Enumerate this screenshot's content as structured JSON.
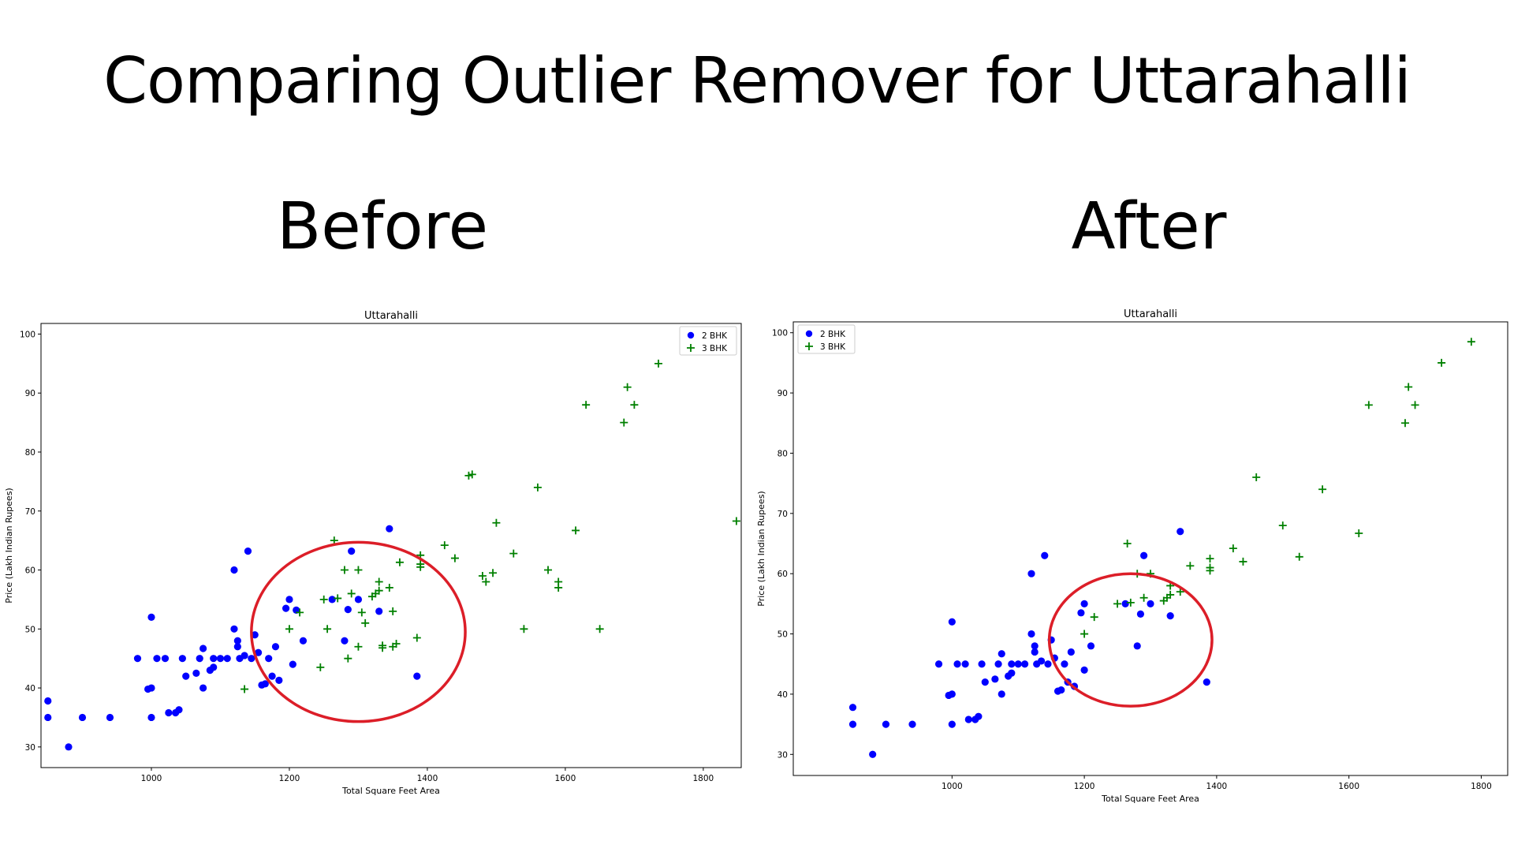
{
  "page": {
    "title": "Comparing Outlier Remover for Uttarahalli",
    "panel_labels": [
      "Before",
      "After"
    ]
  },
  "colors": {
    "bhk2": "#0000ff",
    "bhk3": "#008000",
    "highlight": "#dc1e28"
  },
  "chart_data": [
    {
      "type": "scatter",
      "panel": "Before",
      "title": "Uttarahalli",
      "xlabel": "Total Square Feet Area",
      "ylabel": "Price (Lakh Indian Rupees)",
      "xlim": [
        840,
        1855
      ],
      "ylim": [
        26.5,
        101.8
      ],
      "xticks": [
        1000,
        1200,
        1400,
        1600,
        1800
      ],
      "yticks": [
        30,
        40,
        50,
        60,
        70,
        80,
        90,
        100
      ],
      "legend": {
        "placement": "top-right",
        "entries": [
          "2 BHK",
          "3 BHK"
        ]
      },
      "highlight_ellipse": {
        "cx": 1300,
        "cy": 49.5,
        "rx": 155,
        "ry": 15.2
      },
      "series": [
        {
          "name": "2 BHK",
          "marker": "circle",
          "points": [
            [
              850,
              37.8
            ],
            [
              850,
              35
            ],
            [
              880,
              30
            ],
            [
              900,
              35
            ],
            [
              940,
              35
            ],
            [
              980,
              45
            ],
            [
              995,
              39.8
            ],
            [
              1000,
              40
            ],
            [
              1000,
              52
            ],
            [
              1000,
              35
            ],
            [
              1008,
              45
            ],
            [
              1020,
              45
            ],
            [
              1025,
              35.8
            ],
            [
              1035,
              35.8
            ],
            [
              1040,
              36.3
            ],
            [
              1045,
              45
            ],
            [
              1050,
              42
            ],
            [
              1065,
              42.5
            ],
            [
              1070,
              45
            ],
            [
              1075,
              46.7
            ],
            [
              1075,
              40
            ],
            [
              1085,
              43
            ],
            [
              1090,
              43.5
            ],
            [
              1090,
              45
            ],
            [
              1100,
              45
            ],
            [
              1110,
              45
            ],
            [
              1120,
              50
            ],
            [
              1120,
              60
            ],
            [
              1125,
              48
            ],
            [
              1125,
              47
            ],
            [
              1128,
              45
            ],
            [
              1135,
              45.5
            ],
            [
              1140,
              63.2
            ],
            [
              1145,
              45
            ],
            [
              1150,
              49
            ],
            [
              1155,
              46
            ],
            [
              1160,
              40.5
            ],
            [
              1165,
              40.7
            ],
            [
              1170,
              45
            ],
            [
              1175,
              42
            ],
            [
              1180,
              47
            ],
            [
              1185,
              41.3
            ],
            [
              1195,
              53.5
            ],
            [
              1200,
              55
            ],
            [
              1205,
              44
            ],
            [
              1210,
              53.2
            ],
            [
              1220,
              48
            ],
            [
              1262,
              55
            ],
            [
              1280,
              48
            ],
            [
              1285,
              53.3
            ],
            [
              1290,
              63.2
            ],
            [
              1300,
              55
            ],
            [
              1330,
              53
            ],
            [
              1345,
              67
            ],
            [
              1385,
              42
            ]
          ]
        },
        {
          "name": "3 BHK",
          "marker": "plus",
          "points": [
            [
              1135,
              39.8
            ],
            [
              1200,
              50
            ],
            [
              1215,
              52.8
            ],
            [
              1245,
              43.5
            ],
            [
              1250,
              55
            ],
            [
              1255,
              50
            ],
            [
              1265,
              65
            ],
            [
              1270,
              55.2
            ],
            [
              1280,
              60
            ],
            [
              1285,
              45
            ],
            [
              1290,
              56
            ],
            [
              1300,
              60
            ],
            [
              1300,
              47
            ],
            [
              1305,
              52.8
            ],
            [
              1310,
              51
            ],
            [
              1320,
              55.5
            ],
            [
              1325,
              56
            ],
            [
              1330,
              58
            ],
            [
              1330,
              56.5
            ],
            [
              1335,
              46.8
            ],
            [
              1335,
              47.2
            ],
            [
              1345,
              57
            ],
            [
              1350,
              47
            ],
            [
              1350,
              53
            ],
            [
              1355,
              47.5
            ],
            [
              1360,
              61.3
            ],
            [
              1385,
              48.5
            ],
            [
              1390,
              62.5
            ],
            [
              1390,
              61
            ],
            [
              1390,
              60.5
            ],
            [
              1425,
              64.2
            ],
            [
              1440,
              62
            ],
            [
              1460,
              76
            ],
            [
              1465,
              76.2
            ],
            [
              1480,
              59
            ],
            [
              1485,
              58
            ],
            [
              1495,
              59.5
            ],
            [
              1500,
              68
            ],
            [
              1525,
              62.8
            ],
            [
              1540,
              50
            ],
            [
              1560,
              74
            ],
            [
              1575,
              60
            ],
            [
              1590,
              58
            ],
            [
              1590,
              57
            ],
            [
              1615,
              66.7
            ],
            [
              1630,
              88
            ],
            [
              1650,
              50
            ],
            [
              1685,
              85
            ],
            [
              1690,
              91
            ],
            [
              1700,
              88
            ],
            [
              1735,
              95
            ],
            [
              1785,
              98.3
            ],
            [
              1848,
              68.3
            ]
          ]
        }
      ]
    },
    {
      "type": "scatter",
      "panel": "After",
      "title": "Uttarahalli",
      "xlabel": "Total Square Feet Area",
      "ylabel": "Price (Lakh Indian Rupees)",
      "xlim": [
        760,
        1840
      ],
      "ylim": [
        26.5,
        101.8
      ],
      "xticks": [
        1000,
        1200,
        1400,
        1600,
        1800
      ],
      "yticks": [
        30,
        40,
        50,
        60,
        70,
        80,
        90,
        100
      ],
      "legend": {
        "placement": "top-left",
        "entries": [
          "2 BHK",
          "3 BHK"
        ]
      },
      "highlight_ellipse": {
        "cx": 1270,
        "cy": 49,
        "rx": 123,
        "ry": 11
      },
      "series": [
        {
          "name": "2 BHK",
          "marker": "circle",
          "points": [
            [
              850,
              37.8
            ],
            [
              850,
              35
            ],
            [
              880,
              30
            ],
            [
              900,
              35
            ],
            [
              940,
              35
            ],
            [
              980,
              45
            ],
            [
              995,
              39.8
            ],
            [
              1000,
              40
            ],
            [
              1000,
              52
            ],
            [
              1000,
              35
            ],
            [
              1008,
              45
            ],
            [
              1020,
              45
            ],
            [
              1025,
              35.8
            ],
            [
              1035,
              35.8
            ],
            [
              1040,
              36.3
            ],
            [
              1045,
              45
            ],
            [
              1050,
              42
            ],
            [
              1065,
              42.5
            ],
            [
              1070,
              45
            ],
            [
              1075,
              46.7
            ],
            [
              1075,
              40
            ],
            [
              1085,
              43
            ],
            [
              1090,
              43.5
            ],
            [
              1090,
              45
            ],
            [
              1100,
              45
            ],
            [
              1110,
              45
            ],
            [
              1120,
              50
            ],
            [
              1120,
              60
            ],
            [
              1125,
              48
            ],
            [
              1125,
              47
            ],
            [
              1128,
              45
            ],
            [
              1135,
              45.5
            ],
            [
              1140,
              63
            ],
            [
              1145,
              45
            ],
            [
              1150,
              49
            ],
            [
              1155,
              46
            ],
            [
              1160,
              40.5
            ],
            [
              1165,
              40.7
            ],
            [
              1170,
              45
            ],
            [
              1175,
              42
            ],
            [
              1180,
              47
            ],
            [
              1185,
              41.3
            ],
            [
              1195,
              53.5
            ],
            [
              1200,
              55
            ],
            [
              1200,
              44
            ],
            [
              1210,
              48
            ],
            [
              1262,
              55
            ],
            [
              1280,
              48
            ],
            [
              1285,
              53.3
            ],
            [
              1290,
              63
            ],
            [
              1300,
              55
            ],
            [
              1330,
              53
            ],
            [
              1345,
              67
            ],
            [
              1385,
              42
            ]
          ]
        },
        {
          "name": "3 BHK",
          "marker": "plus",
          "points": [
            [
              1200,
              50
            ],
            [
              1215,
              52.8
            ],
            [
              1250,
              55
            ],
            [
              1265,
              65
            ],
            [
              1270,
              55.2
            ],
            [
              1280,
              60
            ],
            [
              1290,
              56
            ],
            [
              1300,
              60
            ],
            [
              1320,
              55.5
            ],
            [
              1325,
              56
            ],
            [
              1330,
              58
            ],
            [
              1330,
              56.5
            ],
            [
              1345,
              57
            ],
            [
              1360,
              61.3
            ],
            [
              1390,
              62.5
            ],
            [
              1390,
              61
            ],
            [
              1390,
              60.5
            ],
            [
              1425,
              64.2
            ],
            [
              1440,
              62
            ],
            [
              1460,
              76
            ],
            [
              1500,
              68
            ],
            [
              1525,
              62.8
            ],
            [
              1560,
              74
            ],
            [
              1615,
              66.7
            ],
            [
              1630,
              88
            ],
            [
              1685,
              85
            ],
            [
              1690,
              91
            ],
            [
              1700,
              88
            ],
            [
              1740,
              95
            ],
            [
              1785,
              98.5
            ]
          ]
        }
      ]
    }
  ]
}
